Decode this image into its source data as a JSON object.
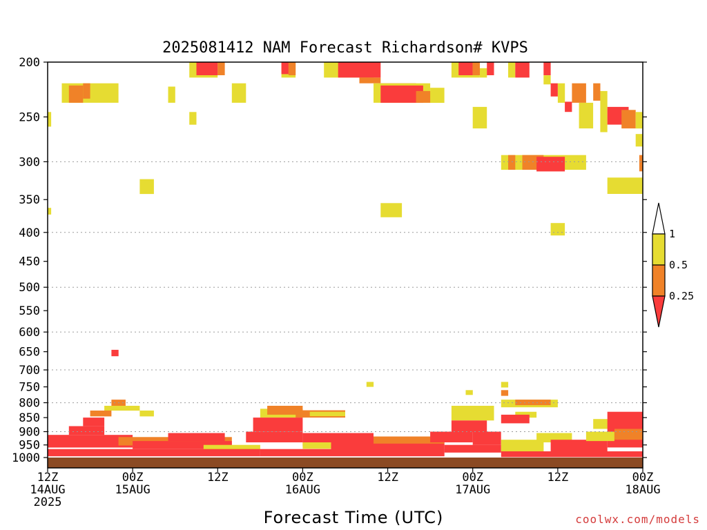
{
  "chart_data": {
    "type": "heatmap",
    "title": "2025081412 NAM Forecast Richardson# KVPS",
    "xlabel": "Forecast Time (UTC)",
    "ylabel": "",
    "x_unit": "hours after 2025-08-14 12Z",
    "xlim": [
      0,
      84
    ],
    "x_ticks": [
      {
        "hour": 0,
        "labels": [
          "12Z",
          "14AUG",
          "2025"
        ]
      },
      {
        "hour": 12,
        "labels": [
          "00Z",
          "15AUG"
        ]
      },
      {
        "hour": 24,
        "labels": [
          "12Z"
        ]
      },
      {
        "hour": 36,
        "labels": [
          "00Z",
          "16AUG"
        ]
      },
      {
        "hour": 48,
        "labels": [
          "12Z"
        ]
      },
      {
        "hour": 60,
        "labels": [
          "00Z",
          "17AUG"
        ]
      },
      {
        "hour": 72,
        "labels": [
          "12Z"
        ]
      },
      {
        "hour": 84,
        "labels": [
          "00Z",
          "18AUG"
        ]
      }
    ],
    "y_scale": "log",
    "y_reversed": true,
    "ylim": [
      1000,
      200
    ],
    "y_ticks": [
      200,
      250,
      300,
      350,
      400,
      450,
      500,
      550,
      600,
      650,
      700,
      750,
      800,
      850,
      900,
      950,
      1000
    ],
    "grid_levels": [
      300,
      400,
      500,
      600,
      700,
      800,
      900
    ],
    "grid_style": "dotted",
    "colorbar": {
      "labels": [
        "1",
        "0.5",
        "0.25"
      ],
      "bins": [
        {
          "range": "0.5-1",
          "color": "#e6dc32"
        },
        {
          "range": "0.25-0.5",
          "color": "#f08228"
        },
        {
          "range": "<0.25",
          "color": "#fa3c3c"
        }
      ],
      "over_color": "#ffffff"
    },
    "ground_color": "#8b4a23",
    "cells": [
      {
        "x0": 20,
        "x1": 24,
        "p0": 197,
        "p1": 213,
        "v": "y"
      },
      {
        "x0": 21,
        "x1": 24,
        "p0": 197,
        "p1": 211,
        "v": "r"
      },
      {
        "x0": 24,
        "x1": 25,
        "p0": 197,
        "p1": 211,
        "v": "o"
      },
      {
        "x0": 33,
        "x1": 35,
        "p0": 197,
        "p1": 213,
        "v": "y"
      },
      {
        "x0": 33,
        "x1": 34,
        "p0": 200,
        "p1": 210,
        "v": "r"
      },
      {
        "x0": 34,
        "x1": 35,
        "p0": 197,
        "p1": 211,
        "v": "o"
      },
      {
        "x0": 39,
        "x1": 46,
        "p0": 197,
        "p1": 213,
        "v": "y"
      },
      {
        "x0": 41,
        "x1": 47,
        "p0": 197,
        "p1": 213,
        "v": "r"
      },
      {
        "x0": 44,
        "x1": 47,
        "p0": 213,
        "p1": 218,
        "v": "o"
      },
      {
        "x0": 47,
        "x1": 52,
        "p0": 218,
        "p1": 236,
        "v": "r"
      },
      {
        "x0": 46,
        "x1": 54,
        "p0": 218,
        "p1": 236,
        "v": "y"
      },
      {
        "x0": 47,
        "x1": 53,
        "p0": 220,
        "p1": 236,
        "v": "r"
      },
      {
        "x0": 52,
        "x1": 55,
        "p0": 225,
        "p1": 236,
        "v": "o"
      },
      {
        "x0": 54,
        "x1": 56,
        "p0": 222,
        "p1": 236,
        "v": "y"
      },
      {
        "x0": 57,
        "x1": 61,
        "p0": 197,
        "p1": 213,
        "v": "y"
      },
      {
        "x0": 58,
        "x1": 60,
        "p0": 197,
        "p1": 211,
        "v": "r"
      },
      {
        "x0": 60,
        "x1": 61,
        "p0": 197,
        "p1": 211,
        "v": "o"
      },
      {
        "x0": 61,
        "x1": 62,
        "p0": 205,
        "p1": 213,
        "v": "y"
      },
      {
        "x0": 62,
        "x1": 63,
        "p0": 197,
        "p1": 211,
        "v": "r"
      },
      {
        "x0": 65,
        "x1": 66,
        "p0": 197,
        "p1": 213,
        "v": "y"
      },
      {
        "x0": 66,
        "x1": 68,
        "p0": 197,
        "p1": 213,
        "v": "r"
      },
      {
        "x0": 70,
        "x1": 71,
        "p0": 197,
        "p1": 211,
        "v": "r"
      },
      {
        "x0": 70,
        "x1": 71,
        "p0": 211,
        "p1": 219,
        "v": "y"
      },
      {
        "x0": 2,
        "x1": 10,
        "p0": 218,
        "p1": 236,
        "v": "y"
      },
      {
        "x0": 3,
        "x1": 5,
        "p0": 220,
        "p1": 236,
        "v": "o"
      },
      {
        "x0": 5,
        "x1": 6,
        "p0": 218,
        "p1": 232,
        "v": "o"
      },
      {
        "x0": 17,
        "x1": 18,
        "p0": 221,
        "p1": 236,
        "v": "y"
      },
      {
        "x0": 26,
        "x1": 28,
        "p0": 218,
        "p1": 236,
        "v": "y"
      },
      {
        "x0": 71,
        "x1": 72,
        "p0": 218,
        "p1": 230,
        "v": "r"
      },
      {
        "x0": 72,
        "x1": 73,
        "p0": 218,
        "p1": 236,
        "v": "y"
      },
      {
        "x0": 73,
        "x1": 74,
        "p0": 235,
        "p1": 245,
        "v": "r"
      },
      {
        "x0": 74,
        "x1": 76,
        "p0": 218,
        "p1": 236,
        "v": "o"
      },
      {
        "x0": 75,
        "x1": 77,
        "p0": 236,
        "p1": 262,
        "v": "y"
      },
      {
        "x0": 77,
        "x1": 78,
        "p0": 218,
        "p1": 234,
        "v": "o"
      },
      {
        "x0": 78,
        "x1": 79,
        "p0": 225,
        "p1": 266,
        "v": "y"
      },
      {
        "x0": 79,
        "x1": 82,
        "p0": 240,
        "p1": 258,
        "v": "r"
      },
      {
        "x0": 81,
        "x1": 83,
        "p0": 243,
        "p1": 262,
        "v": "o"
      },
      {
        "x0": 83,
        "x1": 84,
        "p0": 245,
        "p1": 262,
        "v": "y"
      },
      {
        "x0": 60,
        "x1": 62,
        "p0": 240,
        "p1": 262,
        "v": "y"
      },
      {
        "x0": 0,
        "x1": 0.5,
        "p0": 245,
        "p1": 260,
        "v": "y"
      },
      {
        "x0": 20,
        "x1": 21,
        "p0": 245,
        "p1": 258,
        "v": "y"
      },
      {
        "x0": 83,
        "x1": 84,
        "p0": 268,
        "p1": 282,
        "v": "y"
      },
      {
        "x0": 64,
        "x1": 76,
        "p0": 292,
        "p1": 310,
        "v": "y"
      },
      {
        "x0": 65,
        "x1": 66,
        "p0": 292,
        "p1": 310,
        "v": "o"
      },
      {
        "x0": 67,
        "x1": 70,
        "p0": 292,
        "p1": 310,
        "v": "o"
      },
      {
        "x0": 69,
        "x1": 73,
        "p0": 294,
        "p1": 312,
        "v": "r"
      },
      {
        "x0": 83.5,
        "x1": 84,
        "p0": 292,
        "p1": 312,
        "v": "o"
      },
      {
        "x0": 79,
        "x1": 84,
        "p0": 320,
        "p1": 342,
        "v": "y"
      },
      {
        "x0": 13,
        "x1": 15,
        "p0": 322,
        "p1": 342,
        "v": "y"
      },
      {
        "x0": 0,
        "x1": 0.5,
        "p0": 362,
        "p1": 372,
        "v": "y"
      },
      {
        "x0": 47,
        "x1": 50,
        "p0": 355,
        "p1": 376,
        "v": "y"
      },
      {
        "x0": 71,
        "x1": 73,
        "p0": 385,
        "p1": 405,
        "v": "y"
      },
      {
        "x0": 9,
        "x1": 10,
        "p0": 645,
        "p1": 662,
        "v": "r"
      },
      {
        "x0": 45,
        "x1": 46,
        "p0": 735,
        "p1": 750,
        "v": "y"
      },
      {
        "x0": 59,
        "x1": 60,
        "p0": 760,
        "p1": 775,
        "v": "y"
      },
      {
        "x0": 64,
        "x1": 65,
        "p0": 735,
        "p1": 752,
        "v": "y"
      },
      {
        "x0": 64,
        "x1": 65,
        "p0": 760,
        "p1": 778,
        "v": "o"
      },
      {
        "x0": 9,
        "x1": 11,
        "p0": 790,
        "p1": 810,
        "v": "o"
      },
      {
        "x0": 8,
        "x1": 13,
        "p0": 810,
        "p1": 826,
        "v": "y"
      },
      {
        "x0": 13,
        "x1": 15,
        "p0": 826,
        "p1": 846,
        "v": "y"
      },
      {
        "x0": 6,
        "x1": 9,
        "p0": 826,
        "p1": 846,
        "v": "o"
      },
      {
        "x0": 5,
        "x1": 8,
        "p0": 850,
        "p1": 880,
        "v": "r"
      },
      {
        "x0": 3,
        "x1": 8,
        "p0": 880,
        "p1": 912,
        "v": "r"
      },
      {
        "x0": 0,
        "x1": 12,
        "p0": 912,
        "p1": 960,
        "v": "r"
      },
      {
        "x0": 10,
        "x1": 26,
        "p0": 920,
        "p1": 952,
        "v": "o"
      },
      {
        "x0": 12,
        "x1": 26,
        "p0": 935,
        "p1": 966,
        "v": "r"
      },
      {
        "x0": 17,
        "x1": 25,
        "p0": 905,
        "p1": 935,
        "v": "r"
      },
      {
        "x0": 22,
        "x1": 30,
        "p0": 950,
        "p1": 975,
        "v": "y"
      },
      {
        "x0": 0,
        "x1": 30,
        "p0": 966,
        "p1": 995,
        "v": "r"
      },
      {
        "x0": 30,
        "x1": 36,
        "p0": 820,
        "p1": 850,
        "v": "y"
      },
      {
        "x0": 31,
        "x1": 36,
        "p0": 810,
        "p1": 840,
        "v": "o"
      },
      {
        "x0": 35,
        "x1": 42,
        "p0": 825,
        "p1": 850,
        "v": "o"
      },
      {
        "x0": 37,
        "x1": 42,
        "p0": 830,
        "p1": 845,
        "v": "y"
      },
      {
        "x0": 29,
        "x1": 36,
        "p0": 850,
        "p1": 900,
        "v": "r"
      },
      {
        "x0": 28,
        "x1": 36,
        "p0": 900,
        "p1": 940,
        "v": "r"
      },
      {
        "x0": 36,
        "x1": 46,
        "p0": 905,
        "p1": 955,
        "v": "r"
      },
      {
        "x0": 36,
        "x1": 44,
        "p0": 940,
        "p1": 965,
        "v": "y"
      },
      {
        "x0": 40,
        "x1": 56,
        "p0": 940,
        "p1": 970,
        "v": "r"
      },
      {
        "x0": 46,
        "x1": 56,
        "p0": 918,
        "p1": 945,
        "v": "o"
      },
      {
        "x0": 30,
        "x1": 56,
        "p0": 966,
        "p1": 995,
        "v": "r"
      },
      {
        "x0": 57,
        "x1": 63,
        "p0": 810,
        "p1": 860,
        "v": "y"
      },
      {
        "x0": 57,
        "x1": 62,
        "p0": 860,
        "p1": 900,
        "v": "r"
      },
      {
        "x0": 54,
        "x1": 60,
        "p0": 900,
        "p1": 940,
        "v": "r"
      },
      {
        "x0": 60,
        "x1": 64,
        "p0": 900,
        "p1": 950,
        "v": "r"
      },
      {
        "x0": 56,
        "x1": 64,
        "p0": 950,
        "p1": 980,
        "v": "r"
      },
      {
        "x0": 64,
        "x1": 72,
        "p0": 790,
        "p1": 815,
        "v": "y"
      },
      {
        "x0": 66,
        "x1": 71,
        "p0": 790,
        "p1": 808,
        "v": "o"
      },
      {
        "x0": 66,
        "x1": 69,
        "p0": 830,
        "p1": 850,
        "v": "y"
      },
      {
        "x0": 64,
        "x1": 68,
        "p0": 840,
        "p1": 870,
        "v": "r"
      },
      {
        "x0": 69,
        "x1": 74,
        "p0": 905,
        "p1": 940,
        "v": "y"
      },
      {
        "x0": 64,
        "x1": 70,
        "p0": 930,
        "p1": 975,
        "v": "y"
      },
      {
        "x0": 71,
        "x1": 79,
        "p0": 930,
        "p1": 990,
        "v": "r"
      },
      {
        "x0": 77,
        "x1": 80,
        "p0": 855,
        "p1": 890,
        "v": "y"
      },
      {
        "x0": 79,
        "x1": 84,
        "p0": 830,
        "p1": 870,
        "v": "r"
      },
      {
        "x0": 79,
        "x1": 84,
        "p0": 870,
        "p1": 960,
        "v": "r"
      },
      {
        "x0": 80,
        "x1": 84,
        "p0": 890,
        "p1": 930,
        "v": "o"
      },
      {
        "x0": 76,
        "x1": 80,
        "p0": 900,
        "p1": 935,
        "v": "y"
      },
      {
        "x0": 64,
        "x1": 84,
        "p0": 975,
        "p1": 998,
        "v": "r"
      }
    ]
  },
  "credit": "coolwx.com/models"
}
